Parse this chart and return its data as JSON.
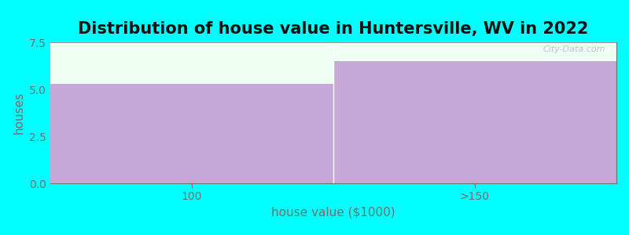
{
  "title": "Distribution of house value in Huntersville, WV in 2022",
  "xlabel": "house value ($1000)",
  "ylabel": "houses",
  "categories": [
    "100",
    ">150"
  ],
  "values": [
    5.3,
    6.5
  ],
  "bar_color": "#C8A8D8",
  "background_color": "#00FFFF",
  "plot_bg_color": "#F0FFF4",
  "ylim": [
    0,
    7.5
  ],
  "yticks": [
    0,
    2.5,
    5,
    7.5
  ],
  "title_fontsize": 15,
  "axis_label_fontsize": 11,
  "tick_fontsize": 10,
  "watermark": "City-Data.com",
  "text_color": "#707070"
}
